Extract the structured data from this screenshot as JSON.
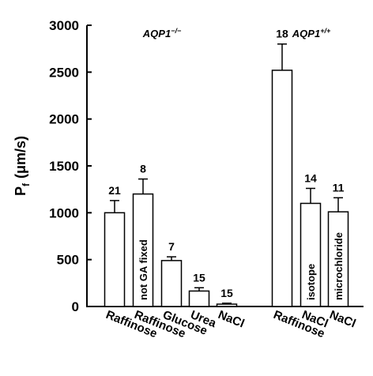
{
  "chart_data": {
    "type": "bar",
    "y_label": {
      "main": "P",
      "sub": "f",
      "unit": "(μm/s)"
    },
    "groups": [
      {
        "name": "AQP1",
        "sup": "−/−"
      },
      {
        "name": "AQP1",
        "sup": "+/+"
      }
    ],
    "categories": [
      "Raffinose",
      "Raffinose",
      "Glucose",
      "Urea",
      "NaCl",
      "Raffinose",
      "NaCl",
      "NaCl"
    ],
    "values": [
      1000,
      1200,
      490,
      165,
      25,
      2520,
      1100,
      1010
    ],
    "errors": [
      130,
      160,
      40,
      35,
      10,
      280,
      160,
      150
    ],
    "counts": [
      21,
      8,
      7,
      15,
      15,
      18,
      14,
      11
    ],
    "bar_labels": [
      null,
      "not GA fixed",
      null,
      null,
      null,
      null,
      "isotope",
      "microchloride"
    ],
    "color": "#ffffff",
    "ylim": [
      0,
      3000
    ],
    "yticks": [
      0,
      500,
      1000,
      1500,
      2000,
      2500,
      3000
    ]
  }
}
